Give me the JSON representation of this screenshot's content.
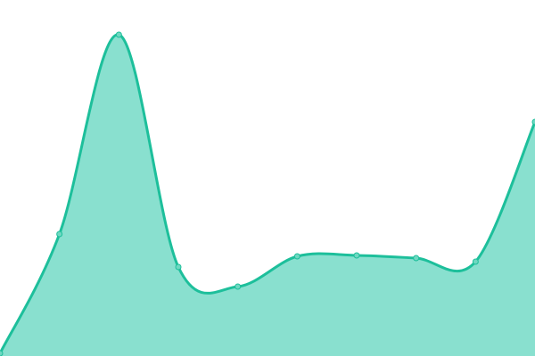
{
  "chart_data": {
    "type": "area",
    "x": [
      0,
      1,
      2,
      3,
      4,
      5,
      6,
      7,
      8,
      9
    ],
    "values": [
      3,
      137,
      361,
      100,
      78,
      112,
      113,
      110,
      106,
      263
    ],
    "ylim": [
      0,
      400
    ],
    "grid": false,
    "legend": "none",
    "smooth": true,
    "colors": {
      "line": "#1dbf9b",
      "fill": "#89e0cf",
      "marker": "#6fd8c1"
    }
  }
}
